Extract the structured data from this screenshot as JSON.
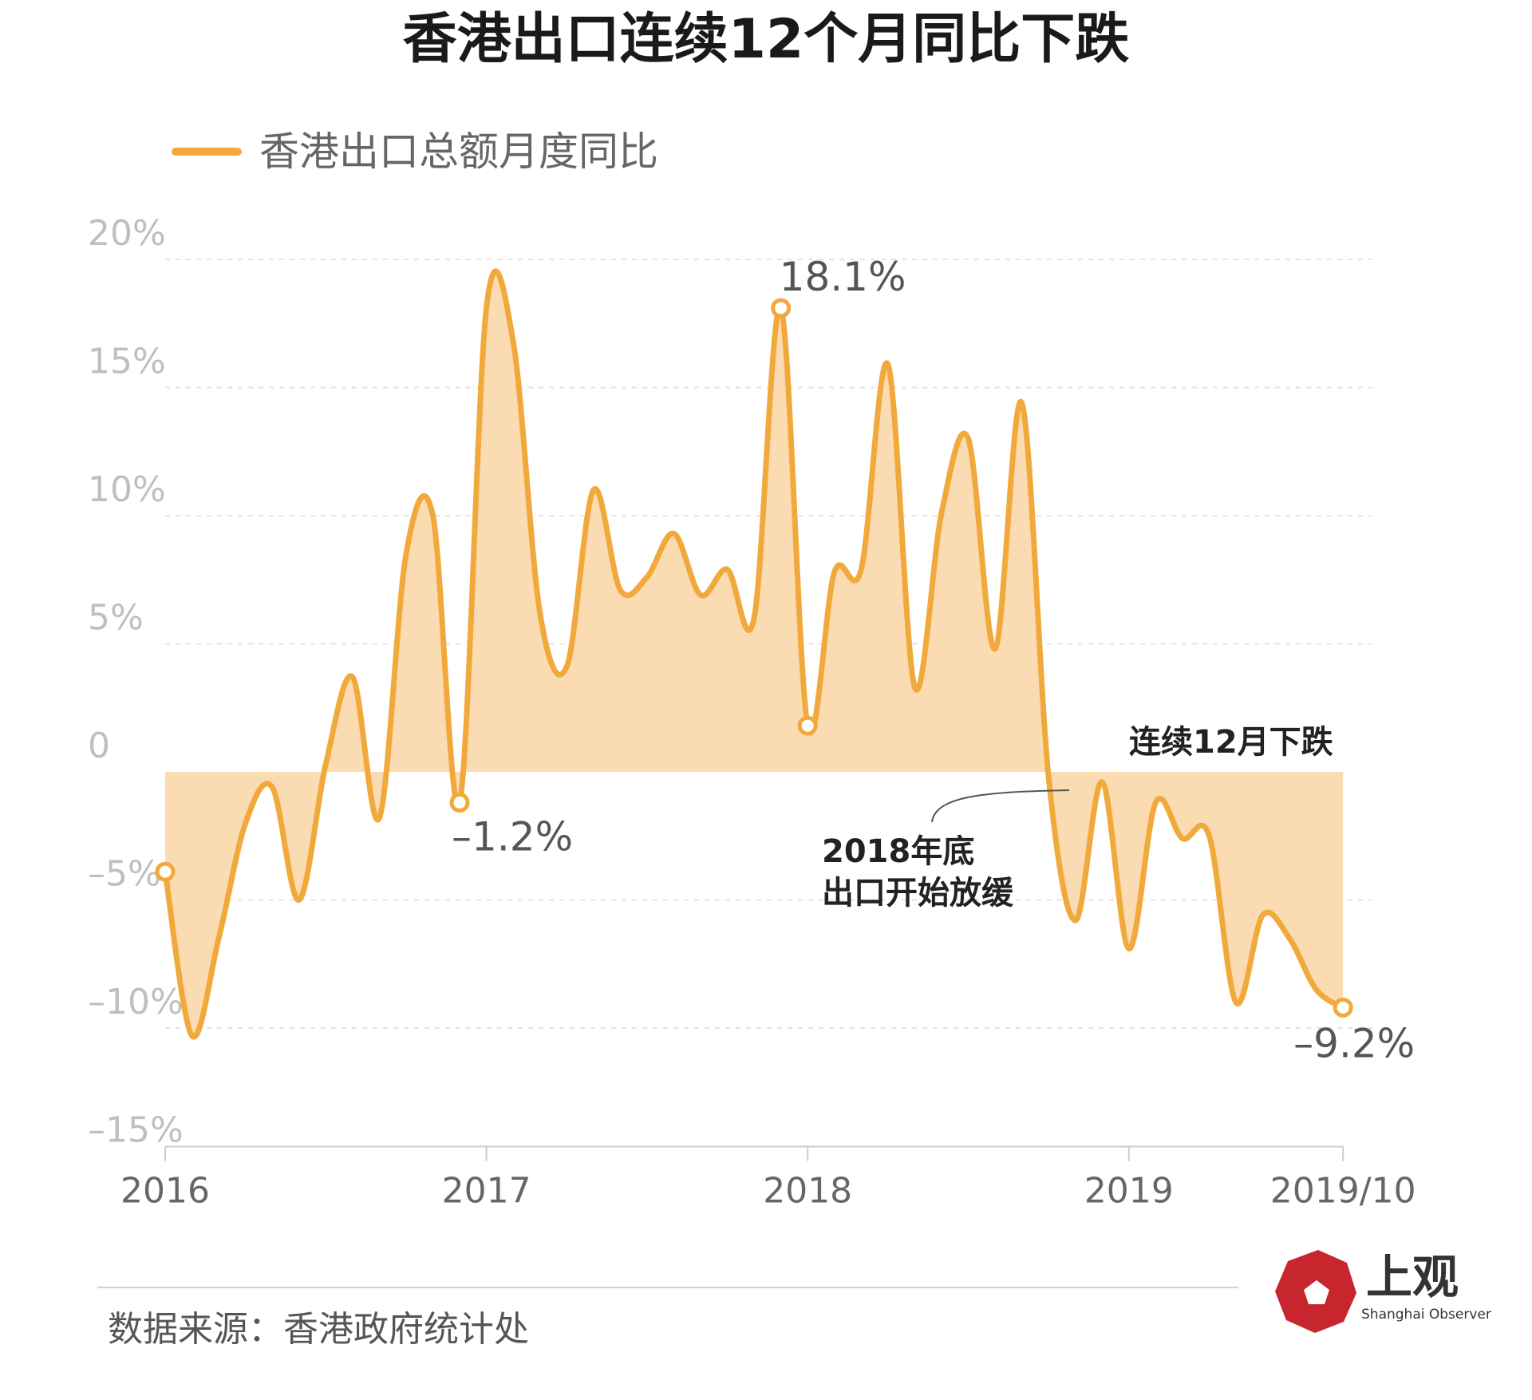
{
  "colors": {
    "line": "#F2A93B",
    "area": "#FAD6A5",
    "grid": "#E3E3E3",
    "axis": "#CCCCCC",
    "logo_red": "#C8262E"
  },
  "chart_data": {
    "type": "area",
    "title": "香港出口连续12个月同比下跌",
    "legend": "香港出口总额月度同比",
    "ylim": [
      -15,
      20
    ],
    "yticks": [
      {
        "value": 20,
        "label": "20%"
      },
      {
        "value": 15,
        "label": "15%"
      },
      {
        "value": 10,
        "label": "10%"
      },
      {
        "value": 5,
        "label": "5%"
      },
      {
        "value": 0,
        "label": "0"
      },
      {
        "value": -5,
        "label": "–5%"
      },
      {
        "value": -10,
        "label": "–10%"
      },
      {
        "value": -15,
        "label": "–15%"
      }
    ],
    "xticks": [
      {
        "month": 0,
        "label": "2016"
      },
      {
        "month": 12,
        "label": "2017"
      },
      {
        "month": 24,
        "label": "2018"
      },
      {
        "month": 36,
        "label": "2019"
      },
      {
        "month": 45,
        "label": "2019/10"
      }
    ],
    "series": [
      {
        "values": [
          -3.9,
          -10.3,
          -6.5,
          -2.0,
          -0.6,
          -5.0,
          0.3,
          3.7,
          -1.8,
          8.5,
          10.0,
          -1.2,
          18.1,
          16.8,
          6.2,
          4.1,
          11.0,
          7.1,
          7.6,
          9.3,
          6.9,
          7.9,
          6.0,
          18.1,
          1.8,
          7.8,
          7.9,
          15.9,
          3.3,
          10.1,
          13.0,
          4.8,
          14.4,
          -0.2,
          -5.8,
          -0.4,
          -6.9,
          -1.2,
          -2.6,
          -2.5,
          -9.0,
          -5.6,
          -6.5,
          -8.5,
          -9.2
        ]
      }
    ],
    "data_labels": [
      {
        "month": 11,
        "value": -1.2,
        "label": "–1.2%"
      },
      {
        "month": 23,
        "value": 18.1,
        "label": "18.1%"
      },
      {
        "month": 44,
        "value": -9.2,
        "label": "–9.2%"
      }
    ],
    "highlight_points": [
      0,
      11,
      23,
      24,
      44
    ],
    "annotations": {
      "decline": "连续12月下跌",
      "slowdown_line1": "2018年底",
      "slowdown_line2": "出口开始放缓"
    }
  },
  "footer": {
    "source": "数据来源：香港政府统计处",
    "logo_cn": "上观",
    "logo_en": "Shanghai Observer"
  }
}
